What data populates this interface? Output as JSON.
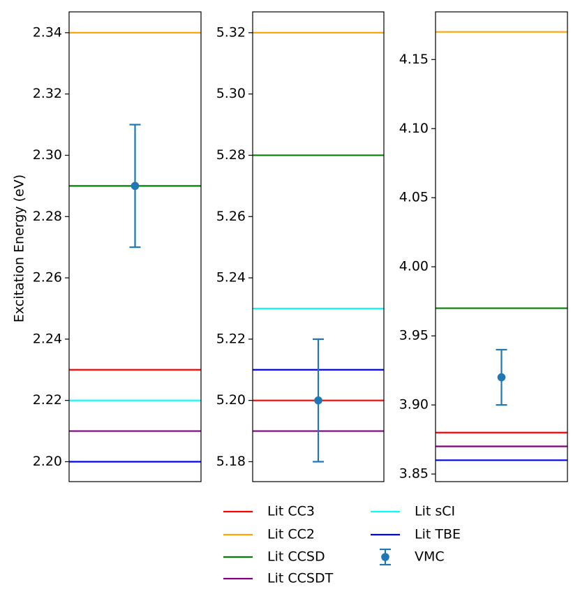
{
  "chart_data": {
    "type": "line",
    "ylabel": "Excitation Energy (eV)",
    "legend_position": "bottom-center",
    "colors": {
      "cc3": "#ff0000",
      "cc2": "#ffa500",
      "ccsd": "#008000",
      "ccsdt": "#800080",
      "sci": "#00ffff",
      "tbe": "#0000ff",
      "vmc": "#1f77b4"
    },
    "legend": [
      {
        "key": "cc3",
        "label": "Lit CC3",
        "kind": "line"
      },
      {
        "key": "cc2",
        "label": "Lit CC2",
        "kind": "line"
      },
      {
        "key": "ccsd",
        "label": "Lit CCSD",
        "kind": "line"
      },
      {
        "key": "ccsdt",
        "label": "Lit CCSDT",
        "kind": "line"
      },
      {
        "key": "sci",
        "label": "Lit sCI",
        "kind": "line"
      },
      {
        "key": "tbe",
        "label": "Lit TBE",
        "kind": "line"
      },
      {
        "key": "vmc",
        "label": "VMC",
        "kind": "errorbar"
      }
    ],
    "panels": [
      {
        "ylim": [
          2.1935,
          2.3468
        ],
        "yticks": [
          "2.20",
          "2.22",
          "2.24",
          "2.26",
          "2.28",
          "2.30",
          "2.32",
          "2.34"
        ],
        "lines": {
          "cc3": 2.23,
          "cc2": 2.34,
          "ccsd": 2.29,
          "ccsdt": 2.21,
          "sci": 2.22,
          "tbe": 2.2
        },
        "vmc": {
          "value": 2.29,
          "error": 0.02
        }
      },
      {
        "ylim": [
          5.1735,
          5.3268
        ],
        "yticks": [
          "5.18",
          "5.20",
          "5.22",
          "5.24",
          "5.26",
          "5.28",
          "5.30",
          "5.32"
        ],
        "lines": {
          "cc3": 5.2,
          "cc2": 5.32,
          "ccsd": 5.28,
          "ccsdt": 5.19,
          "sci": 5.23,
          "tbe": 5.21
        },
        "vmc": {
          "value": 5.2,
          "error": 0.02
        }
      },
      {
        "ylim": [
          3.8445,
          4.1845
        ],
        "yticks": [
          "3.85",
          "3.90",
          "3.95",
          "4.00",
          "4.05",
          "4.10",
          "4.15"
        ],
        "lines": {
          "cc3": 3.88,
          "cc2": 4.17,
          "ccsd": 3.97,
          "ccsdt": 3.87,
          "sci": null,
          "tbe": 3.86
        },
        "vmc": {
          "value": 3.92,
          "error": 0.02
        }
      }
    ]
  }
}
